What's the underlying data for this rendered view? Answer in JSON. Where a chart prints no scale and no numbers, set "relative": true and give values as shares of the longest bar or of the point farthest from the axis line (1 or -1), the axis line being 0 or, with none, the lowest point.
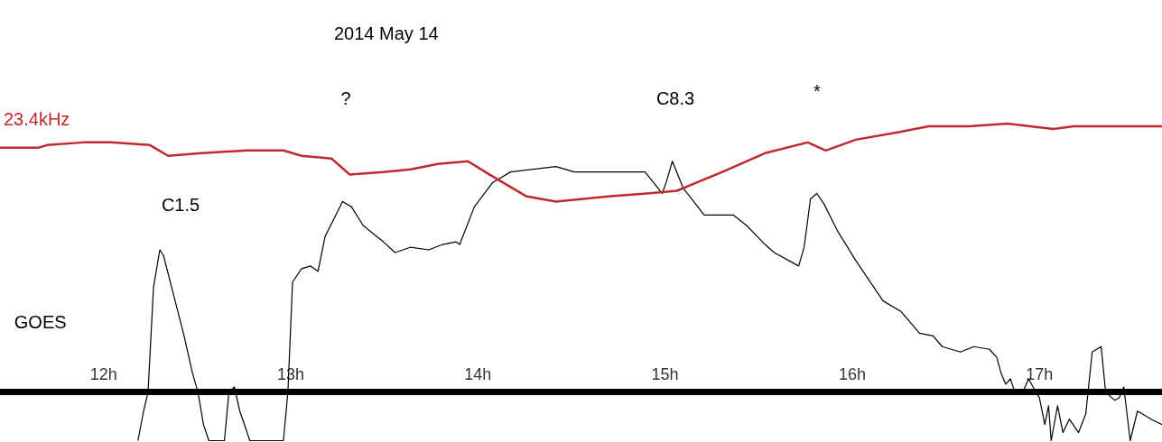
{
  "chart_data": {
    "type": "line",
    "title": "2014 May 14",
    "relative": true,
    "xlim": [
      11.447,
      17.655
    ],
    "xticks": [
      {
        "value": 12,
        "label": "12h"
      },
      {
        "value": 13,
        "label": "13h"
      },
      {
        "value": 14,
        "label": "14h"
      },
      {
        "value": 15,
        "label": "15h"
      },
      {
        "value": 16,
        "label": "16h"
      },
      {
        "value": 17,
        "label": "17h"
      }
    ],
    "annotations": [
      "C1.5",
      "?",
      "C8.3",
      "*"
    ],
    "series": [
      {
        "name": "23.4kHz",
        "color": "#c0282d",
        "x": [
          11.447,
          11.65,
          11.699,
          11.893,
          12.039,
          12.248,
          12.345,
          12.524,
          12.767,
          12.961,
          13.058,
          13.218,
          13.316,
          13.495,
          13.641,
          13.786,
          13.947,
          14.063,
          14.257,
          14.417,
          14.709,
          14.903,
          15.063,
          15.306,
          15.534,
          15.762,
          15.859,
          16.019,
          16.262,
          16.408,
          16.626,
          16.83,
          17.073,
          17.184,
          17.354,
          17.5,
          17.655
        ],
        "values": [
          0.91,
          0.91,
          0.92,
          0.93,
          0.93,
          0.92,
          0.88,
          0.89,
          0.9,
          0.9,
          0.88,
          0.87,
          0.81,
          0.82,
          0.83,
          0.85,
          0.86,
          0.81,
          0.73,
          0.71,
          0.73,
          0.74,
          0.75,
          0.82,
          0.89,
          0.93,
          0.9,
          0.94,
          0.97,
          0.99,
          0.99,
          1,
          0.98,
          0.99,
          0.99,
          0.99,
          0.99
        ]
      },
      {
        "name": "GOES",
        "color": "#000000",
        "x": [
          12.184,
          12.214,
          12.238,
          12.267,
          12.301,
          12.32,
          12.379,
          12.427,
          12.476,
          12.505,
          12.534,
          12.563,
          12.646,
          12.67,
          12.699,
          12.728,
          12.782,
          12.961,
          12.985,
          13.01,
          13.058,
          13.107,
          13.146,
          13.184,
          13.277,
          13.325,
          13.388,
          13.495,
          13.558,
          13.641,
          13.738,
          13.811,
          13.883,
          13.903,
          13.981,
          14.078,
          14.175,
          14.417,
          14.515,
          14.709,
          14.893,
          14.985,
          15.01,
          15.039,
          15.097,
          15.209,
          15.364,
          15.437,
          15.534,
          15.583,
          15.714,
          15.743,
          15.777,
          15.811,
          15.85,
          15.922,
          16.019,
          16.165,
          16.262,
          16.359,
          16.432,
          16.481,
          16.578,
          16.65,
          16.733,
          16.772,
          16.796,
          16.82,
          16.845,
          16.869,
          16.917,
          16.942,
          16.966,
          17.0,
          17.029,
          17.049,
          17.063,
          17.097,
          17.126,
          17.16,
          17.209,
          17.248,
          17.282,
          17.33,
          17.354,
          17.403,
          17.427,
          17.451,
          17.485,
          17.524,
          17.597,
          17.655
        ],
        "values": [
          -0.18,
          -0.07,
          0,
          0.39,
          0.53,
          0.51,
          0.35,
          0.22,
          0.07,
          0,
          -0.12,
          -0.18,
          -0.18,
          0,
          0.02,
          -0.07,
          -0.18,
          -0.18,
          0,
          0.41,
          0.46,
          0.47,
          0.45,
          0.58,
          0.71,
          0.69,
          0.62,
          0.56,
          0.52,
          0.54,
          0.53,
          0.55,
          0.56,
          0.55,
          0.69,
          0.78,
          0.82,
          0.84,
          0.82,
          0.82,
          0.82,
          0.74,
          0.79,
          0.86,
          0.76,
          0.66,
          0.66,
          0.62,
          0.55,
          0.52,
          0.47,
          0.54,
          0.72,
          0.74,
          0.7,
          0.6,
          0.49,
          0.34,
          0.3,
          0.22,
          0.21,
          0.17,
          0.15,
          0.17,
          0.16,
          0.13,
          0.07,
          0.03,
          0.05,
          0,
          0.01,
          0.05,
          0.02,
          -0.02,
          -0.12,
          -0.05,
          -0.18,
          -0.05,
          -0.15,
          -0.1,
          -0.15,
          -0.08,
          0.15,
          0.17,
          0,
          -0.03,
          -0.02,
          0.02,
          -0.18,
          -0.07,
          -0.1,
          -0.12
        ]
      }
    ]
  }
}
